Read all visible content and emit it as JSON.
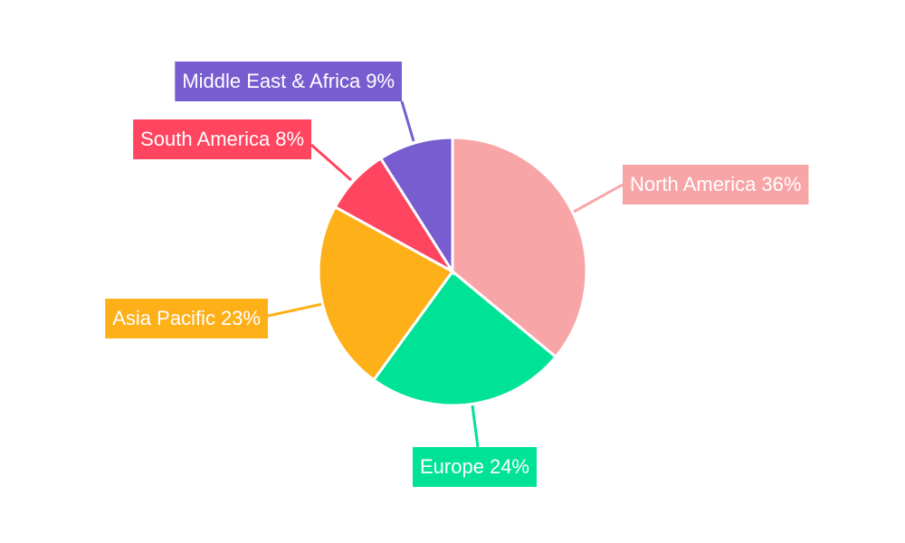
{
  "chart_data": {
    "type": "pie",
    "categories": [
      "North America",
      "Europe",
      "Asia Pacific",
      "South America",
      "Middle East & Africa"
    ],
    "values": [
      36,
      24,
      23,
      8,
      9
    ],
    "value_labels": [
      "36%",
      "24%",
      "23%",
      "8%",
      "9%"
    ],
    "colors": [
      "#f8a5a7",
      "#00e396",
      "#feb019",
      "#ff4560",
      "#775dd0"
    ]
  }
}
